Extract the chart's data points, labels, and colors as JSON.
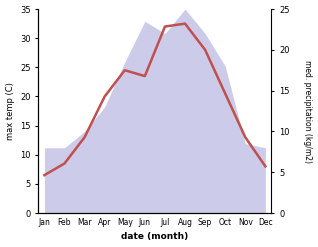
{
  "months": [
    "Jan",
    "Feb",
    "Mar",
    "Apr",
    "May",
    "Jun",
    "Jul",
    "Aug",
    "Sep",
    "Oct",
    "Nov",
    "Dec"
  ],
  "temp_C": [
    6.5,
    8.5,
    13.0,
    20.0,
    24.5,
    23.5,
    32.0,
    32.5,
    28.0,
    20.5,
    13.0,
    8.0
  ],
  "precip_kg": [
    8.0,
    8.0,
    10.0,
    13.0,
    18.5,
    23.5,
    22.0,
    25.0,
    22.0,
    18.0,
    8.5,
    8.0
  ],
  "temp_color": "#c0504d",
  "precip_fill_color": "#aaaadd",
  "precip_fill_alpha": 0.6,
  "ylabel_left": "max temp (C)",
  "ylabel_right": "med. precipitation (kg/m2)",
  "xlabel": "date (month)",
  "ylim_left": [
    0,
    35
  ],
  "ylim_right": [
    0,
    25
  ],
  "yticks_left": [
    0,
    5,
    10,
    15,
    20,
    25,
    30,
    35
  ],
  "yticks_right": [
    0,
    5,
    10,
    15,
    20,
    25
  ],
  "bg_color": "#ffffff",
  "figsize": [
    3.18,
    2.47
  ],
  "dpi": 100
}
